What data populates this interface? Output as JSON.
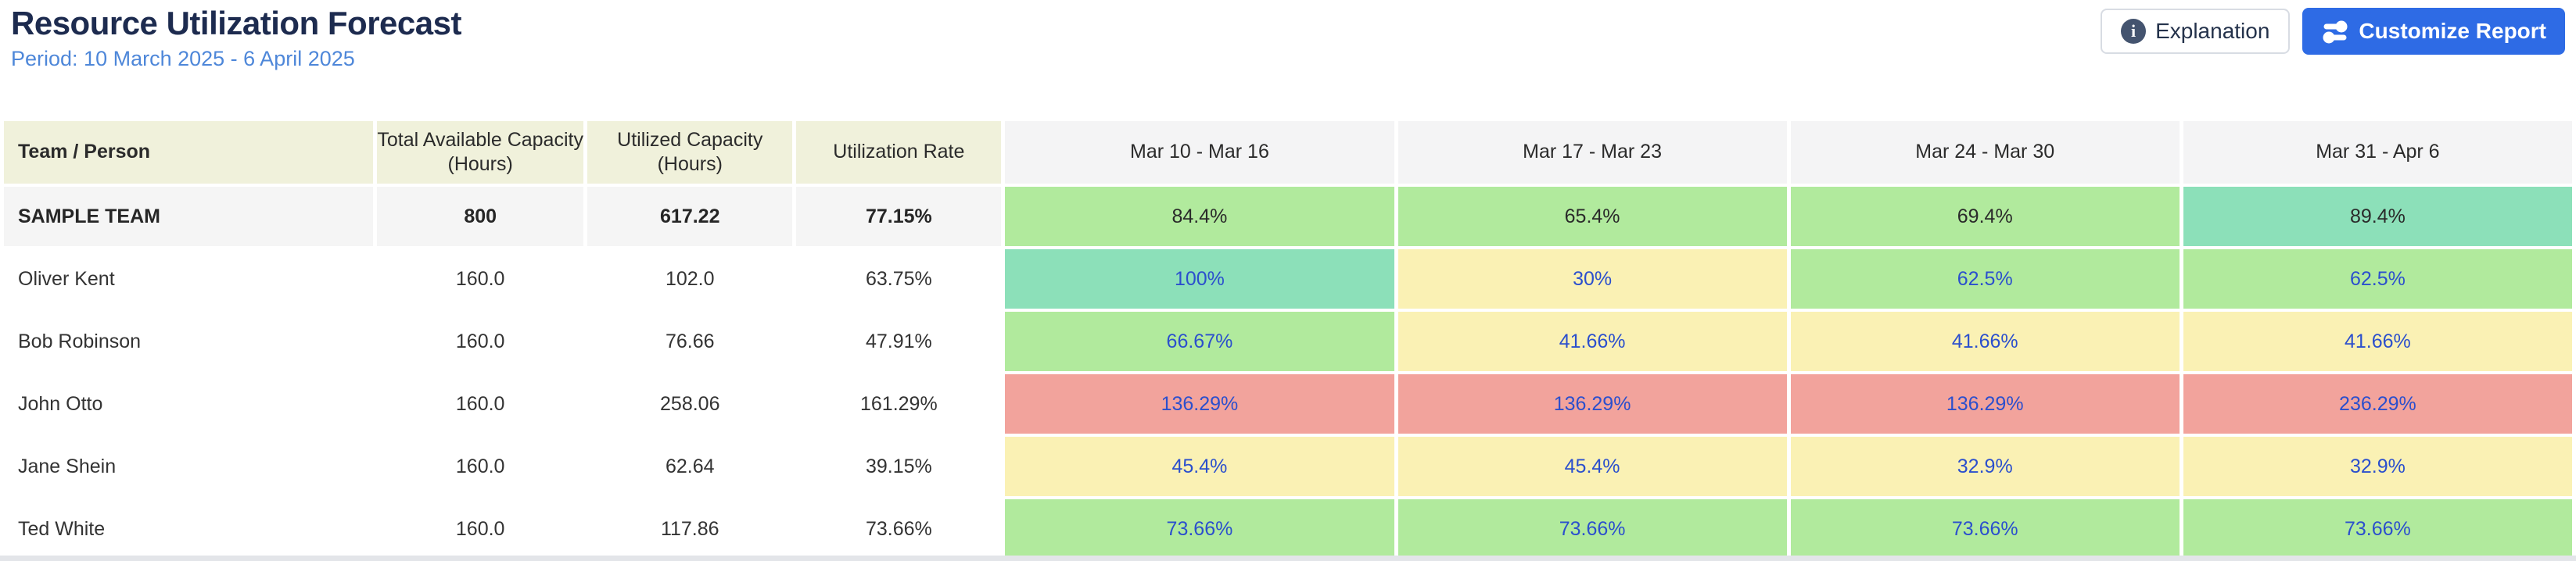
{
  "header": {
    "title": "Resource Utilization Forecast",
    "period": "Period: 10 March 2025 - 6 April 2025",
    "explanation_button": "Explanation",
    "customize_button": "Customize Report"
  },
  "colors": {
    "accent_blue": "#2e6be5",
    "link_blue": "#2b4fcd",
    "title_navy": "#1d2b4f",
    "period_blue": "#4e87d9",
    "header_beige": "#f0f1db",
    "header_gray": "#f4f4f5",
    "team_row_gray": "#f5f5f5",
    "green": "#b1ea9d",
    "teal": "#8ce0b9",
    "yellow": "#faf1b4",
    "red": "#f2a39c"
  },
  "table": {
    "columns": [
      "Team / Person",
      "Total Available Capacity (Hours)",
      "Utilized Capacity (Hours)",
      "Utilization Rate"
    ],
    "week_columns": [
      "Mar 10 - Mar 16",
      "Mar 17 - Mar 23",
      "Mar 24 - Mar 30",
      "Mar 31 - Apr 6"
    ],
    "rows": [
      {
        "name": "SAMPLE TEAM",
        "type": "team",
        "available": "800",
        "utilized": "617.22",
        "rate": "77.15%",
        "weeks": [
          {
            "value": "84.4%",
            "color": "green"
          },
          {
            "value": "65.4%",
            "color": "green"
          },
          {
            "value": "69.4%",
            "color": "green"
          },
          {
            "value": "89.4%",
            "color": "teal"
          }
        ]
      },
      {
        "name": "Oliver Kent",
        "type": "person",
        "available": "160.0",
        "utilized": "102.0",
        "rate": "63.75%",
        "weeks": [
          {
            "value": "100%",
            "color": "teal"
          },
          {
            "value": "30%",
            "color": "yellow"
          },
          {
            "value": "62.5%",
            "color": "green"
          },
          {
            "value": "62.5%",
            "color": "green"
          }
        ]
      },
      {
        "name": "Bob Robinson",
        "type": "person",
        "available": "160.0",
        "utilized": "76.66",
        "rate": "47.91%",
        "weeks": [
          {
            "value": "66.67%",
            "color": "green"
          },
          {
            "value": "41.66%",
            "color": "yellow"
          },
          {
            "value": "41.66%",
            "color": "yellow"
          },
          {
            "value": "41.66%",
            "color": "yellow"
          }
        ]
      },
      {
        "name": "John Otto",
        "type": "person",
        "available": "160.0",
        "utilized": "258.06",
        "rate": "161.29%",
        "weeks": [
          {
            "value": "136.29%",
            "color": "red"
          },
          {
            "value": "136.29%",
            "color": "red"
          },
          {
            "value": "136.29%",
            "color": "red"
          },
          {
            "value": "236.29%",
            "color": "red"
          }
        ]
      },
      {
        "name": "Jane Shein",
        "type": "person",
        "available": "160.0",
        "utilized": "62.64",
        "rate": "39.15%",
        "weeks": [
          {
            "value": "45.4%",
            "color": "yellow"
          },
          {
            "value": "45.4%",
            "color": "yellow"
          },
          {
            "value": "32.9%",
            "color": "yellow"
          },
          {
            "value": "32.9%",
            "color": "yellow"
          }
        ]
      },
      {
        "name": "Ted White",
        "type": "person",
        "available": "160.0",
        "utilized": "117.86",
        "rate": "73.66%",
        "weeks": [
          {
            "value": "73.66%",
            "color": "green"
          },
          {
            "value": "73.66%",
            "color": "green"
          },
          {
            "value": "73.66%",
            "color": "green"
          },
          {
            "value": "73.66%",
            "color": "green"
          }
        ]
      }
    ]
  }
}
